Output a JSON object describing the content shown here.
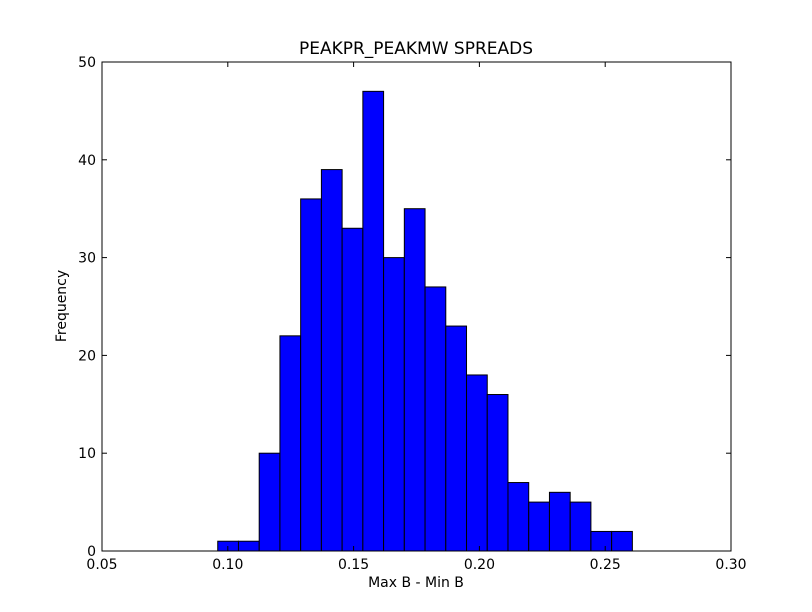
{
  "chart_data": {
    "type": "bar",
    "title": "PEAKPR_PEAKMW SPREADS",
    "xlabel": "Max B - Min B",
    "ylabel": "Frequency",
    "xlim": [
      0.05,
      0.3
    ],
    "ylim": [
      0,
      50
    ],
    "xticks": [
      "0.05",
      "0.10",
      "0.15",
      "0.20",
      "0.25",
      "0.30"
    ],
    "yticks": [
      "0",
      "10",
      "20",
      "30",
      "40",
      "50"
    ],
    "bin_start": 0.096,
    "bin_width": 0.00824,
    "values": [
      1,
      1,
      10,
      22,
      36,
      39,
      33,
      47,
      30,
      35,
      27,
      23,
      18,
      16,
      7,
      5,
      6,
      5,
      2,
      2
    ],
    "bar_color": "#0000ff",
    "edge_color": "#000000",
    "grid": false
  }
}
